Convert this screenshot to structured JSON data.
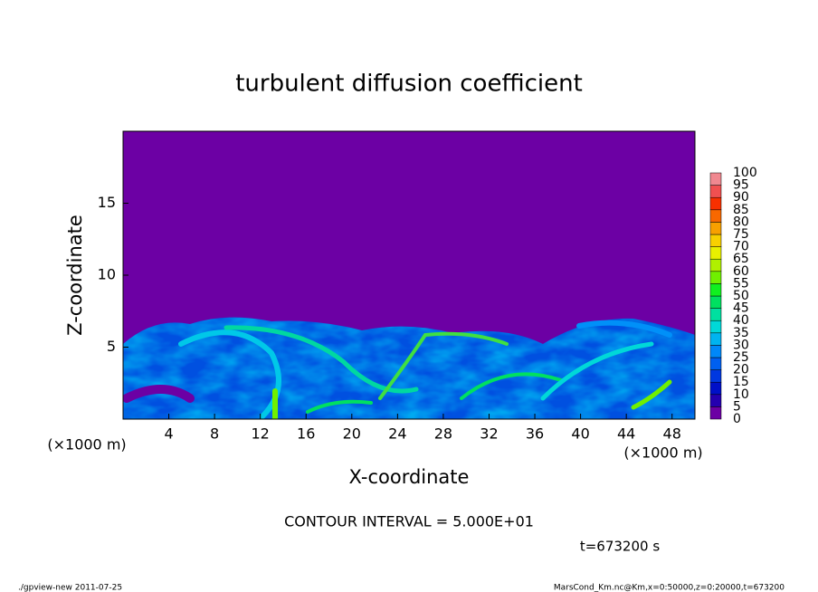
{
  "chart_data": {
    "type": "contour",
    "title": "turbulent diffusion coefficient",
    "xlabel": "X-coordinate",
    "ylabel": "Z-coordinate",
    "xunit": "(×1000 m)",
    "yunit": "(×1000 m)",
    "xlim": [
      0,
      50
    ],
    "ylim": [
      0,
      20
    ],
    "xticks": [
      4,
      8,
      12,
      16,
      20,
      24,
      28,
      32,
      36,
      40,
      44,
      48
    ],
    "yticks": [
      5,
      10,
      15
    ],
    "colorbar": {
      "levels": [
        0,
        5,
        10,
        15,
        20,
        25,
        30,
        35,
        40,
        45,
        50,
        55,
        60,
        65,
        70,
        75,
        80,
        85,
        90,
        95,
        100
      ],
      "colors": [
        "#6c00a4",
        "#2400b0",
        "#0010c8",
        "#0038e0",
        "#0060f0",
        "#0088f8",
        "#00b4f0",
        "#00d8d8",
        "#00e0a0",
        "#00e060",
        "#10f020",
        "#70f000",
        "#b0f000",
        "#e8f000",
        "#f8d000",
        "#f8a000",
        "#f86800",
        "#f83000",
        "#f05050",
        "#f08890"
      ]
    },
    "annotation": "CONTOUR INTERVAL = 5.000E+01",
    "time_label": "t=673200 s",
    "footer_left": "./gpview-new  2011-07-25",
    "footer_right": "MarsCond_Km.nc@Km,x=0:50000,z=0:20000,t=673200"
  }
}
